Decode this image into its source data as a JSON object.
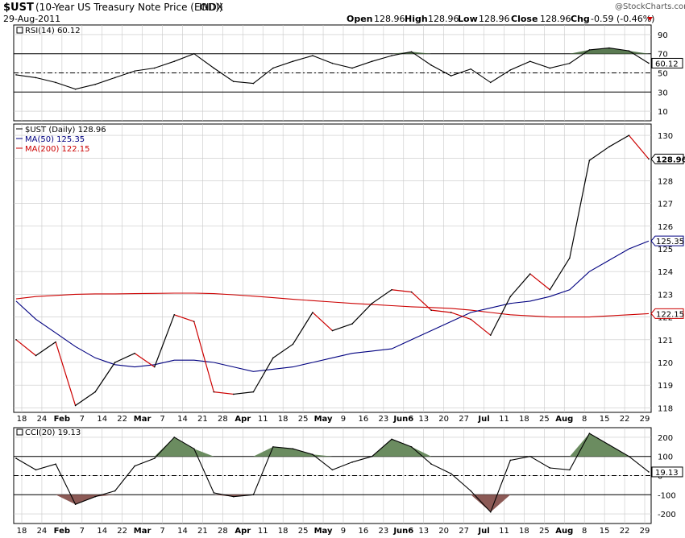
{
  "header": {
    "symbol": "$UST",
    "name": "(10-Year US Treasury Note Price (EOD))",
    "exchange": "INDX",
    "date": "29-Aug-2011",
    "open_label": "Open",
    "open": "128.96",
    "high_label": "High",
    "high": "128.96",
    "low_label": "Low",
    "low": "128.96",
    "close_label": "Close",
    "close": "128.96",
    "chg_label": "Chg",
    "chg": "-0.59 (-0.46%)",
    "watermark": "@StockCharts.com"
  },
  "colors": {
    "price": "#000000",
    "down": "#cc0000",
    "ma50": "#000080",
    "ma200": "#cc0000",
    "rsi_fill": "#5a7a52",
    "cci_up": "#6b8c60",
    "cci_down": "#8c5a56",
    "grid": "#c8c8c8"
  },
  "chart_data": [
    {
      "type": "line",
      "title": "RSI(14) 60.12",
      "legend": "RSI(14) 60.12",
      "ylim": [
        0,
        100
      ],
      "yticks": [
        10,
        30,
        50,
        70,
        90
      ],
      "reference_lines": [
        30,
        50,
        70
      ],
      "last_value": "60.12",
      "x": [
        "Jan 17",
        "Jan 24",
        "Feb 1",
        "Feb 7",
        "Feb 14",
        "Feb 22",
        "Mar 1",
        "Mar 7",
        "Mar 14",
        "Mar 21",
        "Mar 28",
        "Apr 1",
        "Apr 11",
        "Apr 18",
        "Apr 25",
        "May 2",
        "May 9",
        "May 16",
        "May 23",
        "Jun 1",
        "Jun 6",
        "Jun 13",
        "Jun 20",
        "Jun 27",
        "Jul 1",
        "Jul 11",
        "Jul 18",
        "Jul 25",
        "Aug 1",
        "Aug 8",
        "Aug 15",
        "Aug 22",
        "Aug 29"
      ],
      "values": [
        48,
        45,
        40,
        33,
        38,
        45,
        52,
        55,
        62,
        70,
        55,
        41,
        39,
        55,
        62,
        68,
        60,
        55,
        62,
        68,
        72,
        58,
        47,
        54,
        40,
        53,
        62,
        55,
        60,
        74,
        76,
        73,
        60.12
      ]
    },
    {
      "type": "line",
      "title": "$UST (Daily) 128.96",
      "series": [
        {
          "name": "$UST (Daily) 128.96",
          "label": "128.96",
          "values": [
            121.0,
            120.3,
            120.9,
            118.1,
            118.7,
            120.0,
            120.4,
            119.8,
            122.1,
            121.8,
            118.7,
            118.6,
            118.7,
            120.2,
            120.8,
            122.2,
            121.4,
            121.7,
            122.6,
            123.2,
            123.1,
            122.3,
            122.2,
            121.9,
            121.2,
            122.9,
            123.9,
            123.2,
            124.6,
            128.9,
            129.5,
            130.0,
            128.96
          ]
        },
        {
          "name": "MA(50) 125.35",
          "label": "125.35",
          "values": [
            122.7,
            121.9,
            121.3,
            120.7,
            120.2,
            119.9,
            119.8,
            119.9,
            120.1,
            120.1,
            120.0,
            119.8,
            119.6,
            119.7,
            119.8,
            120.0,
            120.2,
            120.4,
            120.5,
            120.6,
            121.0,
            121.4,
            121.8,
            122.2,
            122.4,
            122.6,
            122.7,
            122.9,
            123.2,
            124.0,
            124.5,
            125.0,
            125.35
          ]
        },
        {
          "name": "MA(200) 122.15",
          "label": "122.15",
          "values": [
            122.8,
            122.9,
            122.95,
            123.0,
            123.02,
            123.02,
            123.03,
            123.04,
            123.05,
            123.05,
            123.03,
            122.98,
            122.92,
            122.85,
            122.78,
            122.72,
            122.66,
            122.6,
            122.55,
            122.5,
            122.45,
            122.42,
            122.38,
            122.3,
            122.2,
            122.1,
            122.05,
            122.0,
            122.0,
            122.0,
            122.05,
            122.1,
            122.15
          ]
        }
      ],
      "ylim": [
        117.8,
        130.5
      ],
      "yticks": [
        118,
        119,
        120,
        121,
        122,
        123,
        124,
        125,
        126,
        127,
        128,
        129,
        130
      ]
    },
    {
      "type": "line",
      "title": "CCI(20) 19.13",
      "legend": "CCI(20) 19.13",
      "ylim": [
        -250,
        250
      ],
      "yticks": [
        -200,
        -100,
        0,
        100,
        200
      ],
      "reference_lines": [
        -100,
        0,
        100
      ],
      "last_value": "19.13",
      "values": [
        90,
        30,
        60,
        -150,
        -110,
        -80,
        50,
        90,
        200,
        140,
        -90,
        -110,
        -100,
        150,
        140,
        110,
        30,
        70,
        100,
        190,
        150,
        60,
        10,
        -80,
        -190,
        80,
        100,
        40,
        30,
        220,
        160,
        100,
        19.13
      ]
    }
  ],
  "x_axis": {
    "labels": [
      "18",
      "24",
      "Feb",
      "7",
      "14",
      "22",
      "Mar",
      "7",
      "14",
      "21",
      "28",
      "Apr",
      "11",
      "18",
      "25",
      "May",
      "9",
      "16",
      "23",
      "Jun6",
      "13",
      "20",
      "27",
      "Jul",
      "11",
      "18",
      "25",
      "Aug",
      "8",
      "15",
      "22",
      "29"
    ],
    "bold": [
      "Feb",
      "Mar",
      "Apr",
      "May",
      "Jun6",
      "Jul",
      "Aug"
    ]
  }
}
